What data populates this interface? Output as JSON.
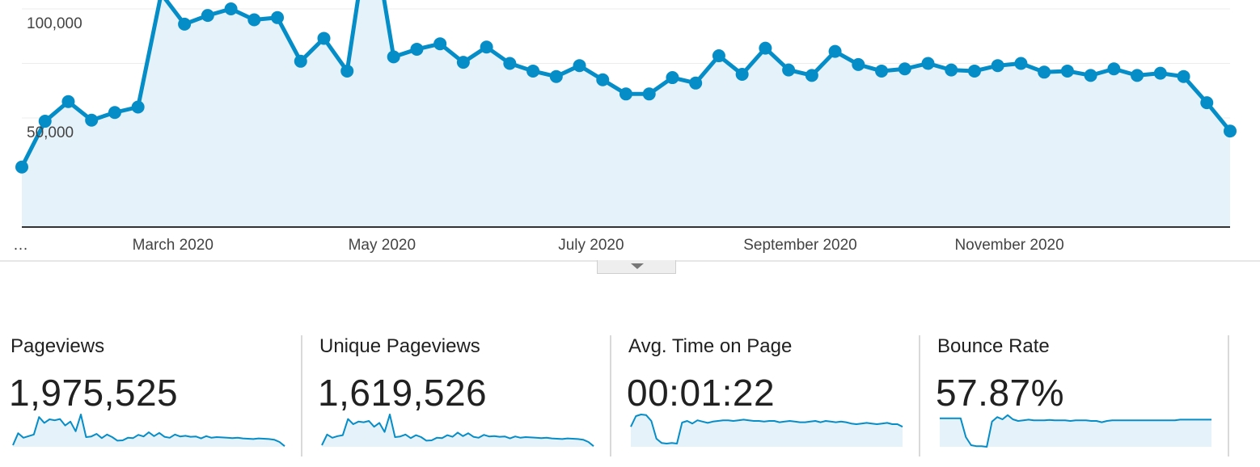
{
  "chart_data": {
    "type": "area",
    "y_ticks": [
      "100,000",
      "50,000"
    ],
    "y_tick_values": [
      100000,
      50000
    ],
    "ylim": [
      0,
      100000
    ],
    "x_tick_labels": [
      "…",
      "March 2020",
      "May 2020",
      "July 2020",
      "September 2020",
      "November 2020"
    ],
    "x_tick_positions": [
      0.0,
      6.5,
      15.5,
      24.5,
      33.5,
      42.5
    ],
    "x_domain": [
      0,
      52
    ],
    "grid": true,
    "series": [
      {
        "values": [
          27500,
          48500,
          57500,
          49000,
          52500,
          55000,
          107000,
          93000,
          97000,
          100000,
          95000,
          96000,
          76000,
          86500,
          71500,
          142000,
          78000,
          81500,
          84000,
          75500,
          82500,
          75000,
          71500,
          69000,
          74000,
          67500,
          61000,
          61000,
          68500,
          66000,
          78500,
          70000,
          82000,
          72000,
          69500,
          80500,
          74500,
          71500,
          72500,
          75000,
          72000,
          71500,
          74000,
          75000,
          71000,
          71500,
          69500,
          72500,
          69500,
          70500,
          69000,
          57000,
          44000
        ]
      }
    ]
  },
  "metrics": [
    {
      "label": "Pageviews",
      "value": "1,975,525",
      "sparkline": [
        0.05,
        0.42,
        0.28,
        0.33,
        0.38,
        0.92,
        0.74,
        0.85,
        0.82,
        0.86,
        0.66,
        0.78,
        0.48,
        1.0,
        0.3,
        0.32,
        0.4,
        0.27,
        0.38,
        0.3,
        0.19,
        0.2,
        0.28,
        0.27,
        0.37,
        0.32,
        0.45,
        0.33,
        0.43,
        0.31,
        0.28,
        0.38,
        0.32,
        0.34,
        0.31,
        0.32,
        0.26,
        0.33,
        0.28,
        0.3,
        0.29,
        0.28,
        0.27,
        0.28,
        0.26,
        0.25,
        0.24,
        0.26,
        0.25,
        0.24,
        0.22,
        0.15,
        0.02
      ]
    },
    {
      "label": "Unique Pageviews",
      "value": "1,619,526",
      "sparkline": [
        0.05,
        0.38,
        0.28,
        0.33,
        0.36,
        0.86,
        0.7,
        0.78,
        0.76,
        0.8,
        0.62,
        0.74,
        0.46,
        1.0,
        0.3,
        0.32,
        0.38,
        0.27,
        0.36,
        0.3,
        0.19,
        0.2,
        0.28,
        0.27,
        0.36,
        0.31,
        0.44,
        0.33,
        0.42,
        0.31,
        0.28,
        0.37,
        0.32,
        0.33,
        0.31,
        0.32,
        0.26,
        0.32,
        0.28,
        0.3,
        0.29,
        0.28,
        0.27,
        0.28,
        0.26,
        0.25,
        0.24,
        0.26,
        0.25,
        0.24,
        0.22,
        0.15,
        0.02
      ]
    },
    {
      "label": "Avg. Time on Page",
      "value": "00:01:22",
      "sparkline": [
        0.62,
        0.95,
        1.0,
        0.98,
        0.8,
        0.25,
        0.12,
        0.1,
        0.12,
        0.1,
        0.75,
        0.8,
        0.72,
        0.82,
        0.78,
        0.74,
        0.78,
        0.8,
        0.82,
        0.82,
        0.8,
        0.82,
        0.84,
        0.82,
        0.8,
        0.8,
        0.78,
        0.8,
        0.8,
        0.76,
        0.78,
        0.8,
        0.78,
        0.76,
        0.76,
        0.78,
        0.8,
        0.76,
        0.8,
        0.78,
        0.76,
        0.78,
        0.76,
        0.72,
        0.7,
        0.72,
        0.74,
        0.72,
        0.7,
        0.72,
        0.74,
        0.7,
        0.7,
        0.62
      ]
    },
    {
      "label": "Bounce Rate",
      "value": "57.87%",
      "sparkline": [
        0.88,
        0.88,
        0.88,
        0.88,
        0.88,
        0.3,
        0.05,
        0.02,
        0.02,
        0.0,
        0.78,
        0.92,
        0.85,
        0.98,
        0.85,
        0.8,
        0.82,
        0.84,
        0.82,
        0.82,
        0.82,
        0.83,
        0.82,
        0.82,
        0.82,
        0.8,
        0.82,
        0.82,
        0.82,
        0.8,
        0.8,
        0.76,
        0.8,
        0.82,
        0.82,
        0.82,
        0.82,
        0.82,
        0.82,
        0.82,
        0.82,
        0.82,
        0.82,
        0.82,
        0.82,
        0.82,
        0.84,
        0.84,
        0.84,
        0.84,
        0.84,
        0.84,
        0.84
      ]
    }
  ],
  "colors": {
    "line": "#058dc7",
    "fill": "#e6f2fa",
    "grid": "#ececec",
    "axis": "#333333",
    "divider": "#d9d9d9"
  },
  "icons": {
    "expand": "triangle-down-icon"
  }
}
